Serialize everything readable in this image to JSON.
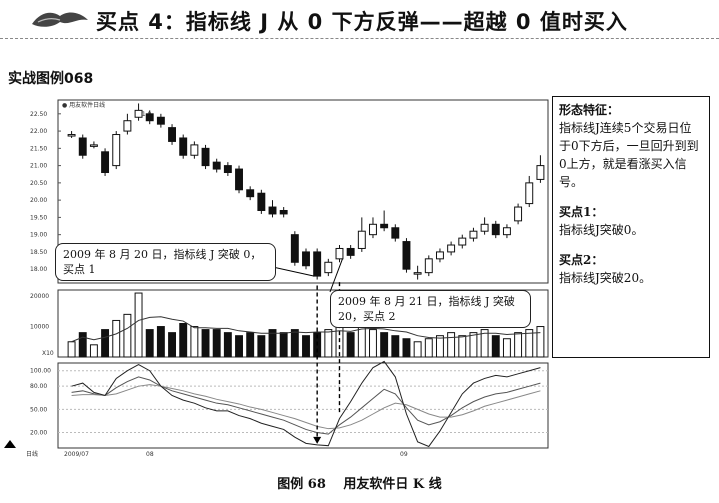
{
  "header": {
    "title": "买点 4：指标线 J 从 0 下方反弹——超越 0 值时买入"
  },
  "subtitle": "实战图例068",
  "chart_data": {
    "type": "candlestick",
    "legend_label": "用友软件日线",
    "peak_label": "21.0",
    "price_ticks": [
      "22.50",
      "22.00",
      "21.50",
      "21.00",
      "20.50",
      "20.00",
      "19.50",
      "19.00",
      "18.50",
      "18.00"
    ],
    "volume_ticks": [
      "20000",
      "10000"
    ],
    "volume_unit": "X10",
    "kdj_ticks": [
      "100.00",
      "80.00",
      "50.00",
      "20.00"
    ],
    "date_ticks": [
      "2009/07",
      "08",
      "09"
    ],
    "bottom_label": "日线",
    "candles": [
      {
        "o": 21.9,
        "c": 21.9,
        "h": 22.0,
        "l": 21.8
      },
      {
        "o": 21.8,
        "c": 21.3,
        "h": 21.9,
        "l": 21.2
      },
      {
        "o": 21.6,
        "c": 21.6,
        "h": 21.7,
        "l": 21.5
      },
      {
        "o": 21.4,
        "c": 20.8,
        "h": 21.5,
        "l": 20.7
      },
      {
        "o": 21.0,
        "c": 21.9,
        "h": 22.0,
        "l": 20.9
      },
      {
        "o": 22.0,
        "c": 22.3,
        "h": 22.5,
        "l": 21.9
      },
      {
        "o": 22.4,
        "c": 22.6,
        "h": 22.8,
        "l": 22.3
      },
      {
        "o": 22.5,
        "c": 22.3,
        "h": 22.6,
        "l": 22.2
      },
      {
        "o": 22.4,
        "c": 22.2,
        "h": 22.5,
        "l": 22.1
      },
      {
        "o": 22.1,
        "c": 21.7,
        "h": 22.2,
        "l": 21.6
      },
      {
        "o": 21.8,
        "c": 21.3,
        "h": 21.9,
        "l": 21.2
      },
      {
        "o": 21.3,
        "c": 21.6,
        "h": 21.7,
        "l": 21.2
      },
      {
        "o": 21.5,
        "c": 21.0,
        "h": 21.6,
        "l": 20.9
      },
      {
        "o": 21.1,
        "c": 20.9,
        "h": 21.2,
        "l": 20.8
      },
      {
        "o": 21.0,
        "c": 20.8,
        "h": 21.1,
        "l": 20.7
      },
      {
        "o": 20.9,
        "c": 20.3,
        "h": 21.0,
        "l": 20.2
      },
      {
        "o": 20.3,
        "c": 20.1,
        "h": 20.4,
        "l": 20.0
      },
      {
        "o": 20.2,
        "c": 19.7,
        "h": 20.3,
        "l": 19.6
      },
      {
        "o": 19.8,
        "c": 19.6,
        "h": 20.0,
        "l": 19.5
      },
      {
        "o": 19.7,
        "c": 19.6,
        "h": 19.8,
        "l": 19.5
      },
      {
        "o": 19.0,
        "c": 18.2,
        "h": 19.1,
        "l": 18.1
      },
      {
        "o": 18.5,
        "c": 18.1,
        "h": 18.6,
        "l": 18.0
      },
      {
        "o": 18.5,
        "c": 17.8,
        "h": 18.6,
        "l": 17.7
      },
      {
        "o": 17.9,
        "c": 18.2,
        "h": 18.3,
        "l": 17.8
      },
      {
        "o": 18.3,
        "c": 18.6,
        "h": 18.7,
        "l": 18.2
      },
      {
        "o": 18.6,
        "c": 18.4,
        "h": 18.7,
        "l": 18.3
      },
      {
        "o": 18.6,
        "c": 19.1,
        "h": 19.5,
        "l": 18.5
      },
      {
        "o": 19.0,
        "c": 19.3,
        "h": 19.5,
        "l": 18.9
      },
      {
        "o": 19.3,
        "c": 19.2,
        "h": 19.7,
        "l": 19.1
      },
      {
        "o": 19.2,
        "c": 18.9,
        "h": 19.3,
        "l": 18.8
      },
      {
        "o": 18.8,
        "c": 18.0,
        "h": 18.9,
        "l": 17.9
      },
      {
        "o": 17.9,
        "c": 17.9,
        "h": 18.1,
        "l": 17.7
      },
      {
        "o": 17.9,
        "c": 18.3,
        "h": 18.4,
        "l": 17.8
      },
      {
        "o": 18.3,
        "c": 18.5,
        "h": 18.6,
        "l": 18.2
      },
      {
        "o": 18.5,
        "c": 18.7,
        "h": 18.8,
        "l": 18.4
      },
      {
        "o": 18.7,
        "c": 18.9,
        "h": 19.0,
        "l": 18.6
      },
      {
        "o": 18.9,
        "c": 19.1,
        "h": 19.2,
        "l": 18.8
      },
      {
        "o": 19.1,
        "c": 19.3,
        "h": 19.5,
        "l": 19.0
      },
      {
        "o": 19.3,
        "c": 19.0,
        "h": 19.4,
        "l": 18.9
      },
      {
        "o": 19.0,
        "c": 19.2,
        "h": 19.3,
        "l": 18.9
      },
      {
        "o": 19.4,
        "c": 19.8,
        "h": 19.9,
        "l": 19.3
      },
      {
        "o": 19.9,
        "c": 20.5,
        "h": 20.7,
        "l": 19.8
      },
      {
        "o": 20.6,
        "c": 21.0,
        "h": 21.3,
        "l": 20.5
      }
    ],
    "volumes": [
      5,
      8,
      4,
      9,
      12,
      14,
      21,
      9,
      10,
      8,
      11,
      10,
      9,
      9,
      8,
      7,
      8,
      7,
      9,
      8,
      9,
      7,
      8,
      9,
      10,
      8,
      11,
      9,
      8,
      7,
      6,
      5,
      6,
      7,
      8,
      7,
      8,
      9,
      7,
      6,
      8,
      9,
      10
    ],
    "kdj": {
      "K": [
        72,
        74,
        70,
        68,
        78,
        86,
        92,
        88,
        80,
        74,
        70,
        66,
        62,
        58,
        56,
        52,
        48,
        44,
        40,
        36,
        30,
        24,
        20,
        18,
        30,
        40,
        52,
        64,
        76,
        70,
        52,
        36,
        30,
        34,
        42,
        52,
        60,
        66,
        70,
        72,
        76,
        80,
        84
      ],
      "D": [
        68,
        69,
        69,
        68,
        70,
        75,
        80,
        82,
        80,
        77,
        74,
        70,
        67,
        63,
        60,
        57,
        53,
        50,
        46,
        42,
        38,
        33,
        28,
        25,
        26,
        30,
        36,
        44,
        52,
        58,
        56,
        50,
        44,
        40,
        40,
        43,
        48,
        54,
        58,
        62,
        66,
        70,
        74
      ],
      "J": [
        80,
        84,
        72,
        68,
        90,
        100,
        108,
        100,
        80,
        68,
        62,
        58,
        52,
        48,
        48,
        42,
        38,
        32,
        28,
        24,
        14,
        6,
        4,
        3,
        38,
        60,
        84,
        104,
        112,
        92,
        44,
        8,
        2,
        22,
        46,
        70,
        84,
        90,
        94,
        92,
        96,
        100,
        104
      ]
    }
  },
  "callouts": {
    "first": "2009 年 8 月 20 日，指标线 J 突破 0，买点 1",
    "second": "2009 年 8 月 21 日，指标线 J 突破 20，买点 2"
  },
  "sidebar": {
    "heading": "形态特征：",
    "desc": "指标线J连续5个交易日位于0下方后，一旦回升到到0上方，就是看涨买入信号。",
    "p1_title": "买点1：",
    "p1_text": "指标线J突破0。",
    "p2_title": "买点2：",
    "p2_text": "指标线J突破20。"
  },
  "caption": "图例 68　 用友软件日 K 线"
}
